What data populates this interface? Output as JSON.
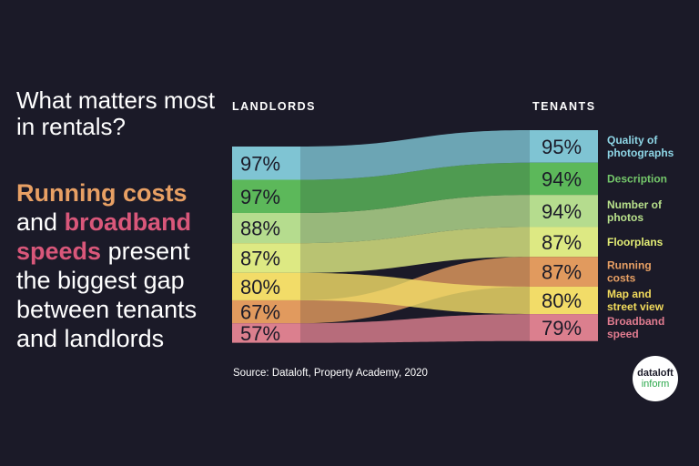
{
  "headline": "What matters most in rentals?",
  "subhead": {
    "part1": "Running costs",
    "part2": " and ",
    "part3": "broadband speeds",
    "part4": " present the biggest gap between tenants and landlords"
  },
  "source": "Source: Dataloft, Property Academy, 2020",
  "logo": {
    "line1": "dataloft",
    "line2": "inform"
  },
  "colors": {
    "background": "#1b1a28",
    "accent_orange": "#e8a064",
    "accent_pink": "#d9577a"
  },
  "chart_data": {
    "type": "slope",
    "left_label": "LANDLORDS",
    "right_label": "TENANTS",
    "left": [
      {
        "category": "Quality of photographs",
        "value": 97
      },
      {
        "category": "Description",
        "value": 97
      },
      {
        "category": "Number of photos",
        "value": 88
      },
      {
        "category": "Floorplans",
        "value": 87
      },
      {
        "category": "Map and street view",
        "value": 80
      },
      {
        "category": "Running costs",
        "value": 67
      },
      {
        "category": "Broadband speed",
        "value": 57
      }
    ],
    "right": [
      {
        "category": "Quality of photographs",
        "label": "Quality of photographs",
        "value": 95,
        "color": "#7fc4d3",
        "labelColor": "#8ed6e6"
      },
      {
        "category": "Description",
        "label": "Description",
        "value": 94,
        "color": "#5cb85a",
        "labelColor": "#74c76a"
      },
      {
        "category": "Number of photos",
        "label": "Number of photos",
        "value": 94,
        "color": "#b5dc8e",
        "labelColor": "#b9e28c"
      },
      {
        "category": "Floorplans",
        "label": "Floorplans",
        "value": 87,
        "color": "#dde983",
        "labelColor": "#e2ec74"
      },
      {
        "category": "Running costs",
        "label": "Running costs",
        "value": 87,
        "color": "#e19a5e",
        "labelColor": "#e8a064"
      },
      {
        "category": "Map and street view",
        "label": "Map and street view",
        "value": 80,
        "color": "#f2dc68",
        "labelColor": "#f3dc5c"
      },
      {
        "category": "Broadband speed",
        "label": "Broadband speed",
        "value": 79,
        "color": "#db7f8e",
        "labelColor": "#e27c90"
      }
    ]
  }
}
